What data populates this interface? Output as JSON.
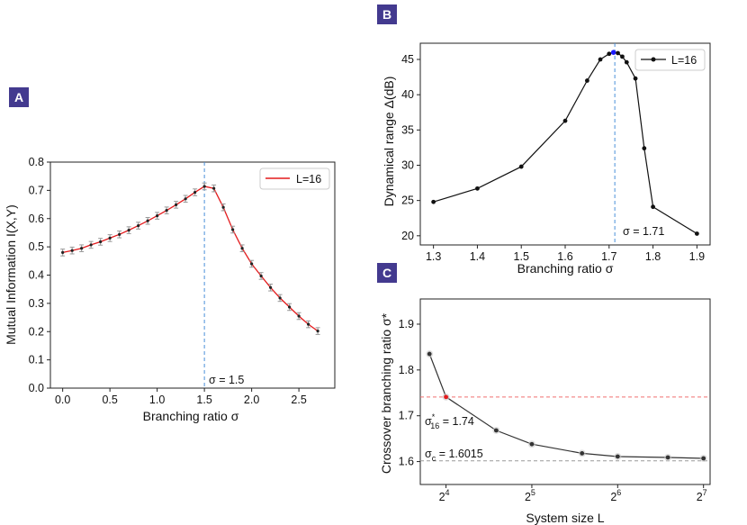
{
  "panels": {
    "A": {
      "label": "A"
    },
    "B": {
      "label": "B"
    },
    "C": {
      "label": "C"
    }
  },
  "colors": {
    "badge": "#433a8f",
    "seriesA": "#e41a1c",
    "seriesB": "#111111",
    "vline": "#4a90d9",
    "hline_red": "#f07070",
    "hline_gray": "#999999",
    "annot_red": "#e41a1c",
    "annot_gray": "#888888",
    "marker": "#222222",
    "peak_marker": "#1a1aff"
  },
  "chart_data": [
    {
      "id": "A",
      "type": "line",
      "xlabel": "Branching ratio σ",
      "ylabel": "Mutual Information I(X,Y)",
      "xlim": [
        -0.13,
        2.88
      ],
      "ylim": [
        0.0,
        0.8
      ],
      "xticks": [
        0.0,
        0.5,
        1.0,
        1.5,
        2.0,
        2.5
      ],
      "xtick_labels": [
        "0.0",
        "0.5",
        "1.0",
        "1.5",
        "2.0",
        "2.5"
      ],
      "yticks": [
        0.0,
        0.1,
        0.2,
        0.3,
        0.4,
        0.5,
        0.6,
        0.7,
        0.8
      ],
      "ytick_labels": [
        "0.0",
        "0.1",
        "0.2",
        "0.3",
        "0.4",
        "0.5",
        "0.6",
        "0.7",
        "0.8"
      ],
      "legend": "L=16",
      "legend_position": "top-right",
      "series": [
        {
          "name": "L=16",
          "x": [
            0.0,
            0.1,
            0.2,
            0.3,
            0.4,
            0.5,
            0.6,
            0.7,
            0.8,
            0.9,
            1.0,
            1.1,
            1.2,
            1.3,
            1.4,
            1.5,
            1.6,
            1.7,
            1.8,
            1.9,
            2.0,
            2.1,
            2.2,
            2.3,
            2.4,
            2.5,
            2.6,
            2.7
          ],
          "y": [
            0.48,
            0.487,
            0.495,
            0.507,
            0.518,
            0.531,
            0.544,
            0.559,
            0.575,
            0.592,
            0.61,
            0.629,
            0.649,
            0.67,
            0.693,
            0.714,
            0.707,
            0.64,
            0.561,
            0.495,
            0.44,
            0.397,
            0.356,
            0.319,
            0.287,
            0.255,
            0.226,
            0.202
          ],
          "yerr": 0.012
        }
      ],
      "vline": {
        "x": 1.5,
        "label": "σ = 1.5"
      }
    },
    {
      "id": "B",
      "type": "line",
      "xlabel": "Branching ratio σ",
      "ylabel": "Dynamical range Δ(dB)",
      "xlim": [
        1.27,
        1.93
      ],
      "ylim": [
        18.7,
        47.3
      ],
      "xticks": [
        1.3,
        1.4,
        1.5,
        1.6,
        1.7,
        1.8,
        1.9
      ],
      "xtick_labels": [
        "1.3",
        "1.4",
        "1.5",
        "1.6",
        "1.7",
        "1.8",
        "1.9"
      ],
      "yticks": [
        20,
        25,
        30,
        35,
        40,
        45
      ],
      "ytick_labels": [
        "20",
        "25",
        "30",
        "35",
        "40",
        "45"
      ],
      "legend": "L=16",
      "legend_position": "top-right",
      "series": [
        {
          "name": "L=16",
          "x": [
            1.3,
            1.4,
            1.5,
            1.6,
            1.65,
            1.68,
            1.7,
            1.71,
            1.72,
            1.73,
            1.74,
            1.76,
            1.78,
            1.8,
            1.9
          ],
          "y": [
            24.8,
            26.7,
            29.8,
            36.3,
            42.0,
            45.0,
            45.8,
            46.0,
            45.9,
            45.4,
            44.6,
            42.3,
            32.4,
            24.1,
            20.3
          ]
        }
      ],
      "peak_x": 1.71,
      "vline": {
        "x": 1.713,
        "label": "σ = 1.71"
      }
    },
    {
      "id": "C",
      "type": "line",
      "xlabel": "System size L",
      "ylabel": "Crossover branching ratio σ*",
      "xscale": "log2",
      "xlim": [
        13.0,
        135.0
      ],
      "ylim": [
        1.55,
        1.955
      ],
      "xticks": [
        16,
        32,
        64,
        128
      ],
      "xtick_base": [
        "2",
        "2",
        "2",
        "2"
      ],
      "xtick_exp": [
        "4",
        "5",
        "6",
        "7"
      ],
      "yticks": [
        1.6,
        1.7,
        1.8,
        1.9
      ],
      "ytick_labels": [
        "1.6",
        "1.7",
        "1.8",
        "1.9"
      ],
      "series": [
        {
          "name": "σ*",
          "x": [
            14,
            16,
            24,
            32,
            48,
            64,
            96,
            128
          ],
          "y": [
            1.835,
            1.741,
            1.668,
            1.638,
            1.618,
            1.611,
            1.609,
            1.607
          ]
        }
      ],
      "highlight_x": 16,
      "hlines": [
        {
          "y": 1.741,
          "label_base": "σ",
          "label_sup": "*",
          "label_sub": "16",
          "label_value": " = 1.74"
        },
        {
          "y": 1.6015,
          "label_base": "σ",
          "label_sub": "c",
          "label_value": " = 1.6015"
        }
      ]
    }
  ]
}
